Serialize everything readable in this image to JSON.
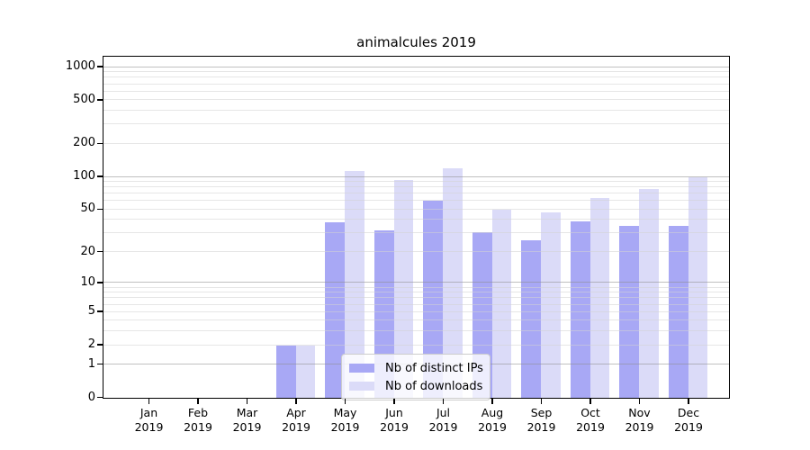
{
  "chart_data": {
    "type": "bar",
    "title": "animalcules 2019",
    "x_axis": {
      "categories": [
        "Jan",
        "Feb",
        "Mar",
        "Apr",
        "May",
        "Jun",
        "Jul",
        "Aug",
        "Sep",
        "Oct",
        "Nov",
        "Dec"
      ],
      "year_suffix": "2019"
    },
    "y_axis": {
      "scale": "log1p",
      "ticks": [
        0,
        1,
        2,
        5,
        10,
        20,
        50,
        100,
        200,
        500,
        1000
      ],
      "ylim": [
        0,
        1220
      ],
      "grid": true,
      "major_grid_values": [
        1,
        10,
        100,
        1000
      ]
    },
    "series": [
      {
        "name": "Nb of distinct IPs",
        "color": "#a8a8f5",
        "values": [
          0,
          0,
          0,
          2,
          38,
          32,
          60,
          31,
          26,
          39,
          35,
          35
        ]
      },
      {
        "name": "Nb of downloads",
        "color": "#dbdbf8",
        "values": [
          0,
          0,
          0,
          2,
          113,
          93,
          121,
          50,
          47,
          64,
          78,
          100
        ]
      }
    ],
    "legend": {
      "position": "inside-bottom-center"
    }
  }
}
